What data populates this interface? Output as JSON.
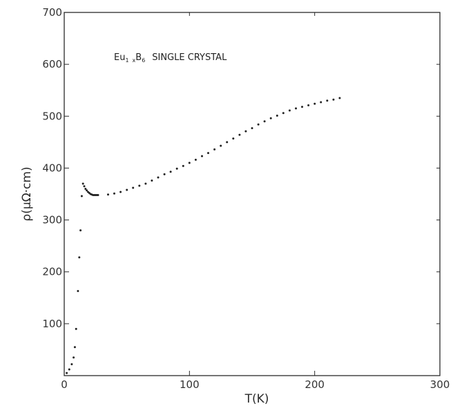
{
  "chart_data": {
    "type": "scatter",
    "title": "",
    "annotation": {
      "prefix": "Eu",
      "sub1": "1",
      "x": "x",
      "middle": "B",
      "sub2": "6",
      "suffix": "SINGLE CRYSTAL"
    },
    "xlabel": "T(K)",
    "ylabel": "ρ(μΩ·cm)",
    "xlim": [
      0,
      300
    ],
    "ylim": [
      0,
      700
    ],
    "xticks": [
      0,
      100,
      200,
      300
    ],
    "xtick_labels": [
      "0",
      "100",
      "200",
      "300"
    ],
    "yticks": [
      100,
      200,
      300,
      400,
      500,
      600,
      700
    ],
    "ytick_labels": [
      "100",
      "200",
      "300",
      "400",
      "500",
      "600",
      "700"
    ],
    "grid": false,
    "legend": "none",
    "color": "#222222",
    "series": [
      {
        "points": [
          [
            2,
            5
          ],
          [
            4,
            12
          ],
          [
            6,
            22
          ],
          [
            7.5,
            35
          ],
          [
            8.5,
            55
          ],
          [
            9.5,
            90
          ],
          [
            11,
            163
          ],
          [
            12,
            228
          ],
          [
            13,
            280
          ],
          [
            14,
            346
          ],
          [
            15,
            370
          ],
          [
            16,
            365
          ],
          [
            17,
            360
          ],
          [
            18,
            357
          ],
          [
            19,
            354
          ],
          [
            20,
            352
          ],
          [
            21,
            350
          ],
          [
            22,
            349
          ],
          [
            23,
            348
          ],
          [
            24,
            348
          ],
          [
            25,
            348
          ],
          [
            26,
            348
          ],
          [
            27,
            348
          ],
          [
            35,
            349
          ],
          [
            40,
            351
          ],
          [
            45,
            354
          ],
          [
            50,
            358
          ],
          [
            55,
            362
          ],
          [
            60,
            366
          ],
          [
            65,
            370
          ],
          [
            70,
            376
          ],
          [
            75,
            382
          ],
          [
            80,
            388
          ],
          [
            85,
            393
          ],
          [
            90,
            399
          ],
          [
            95,
            404
          ],
          [
            100,
            410
          ],
          [
            105,
            416
          ],
          [
            110,
            423
          ],
          [
            115,
            429
          ],
          [
            120,
            436
          ],
          [
            125,
            443
          ],
          [
            130,
            450
          ],
          [
            135,
            457
          ],
          [
            140,
            464
          ],
          [
            145,
            471
          ],
          [
            150,
            477
          ],
          [
            155,
            484
          ],
          [
            160,
            490
          ],
          [
            165,
            496
          ],
          [
            170,
            501
          ],
          [
            175,
            506
          ],
          [
            180,
            511
          ],
          [
            185,
            515
          ],
          [
            190,
            518
          ],
          [
            195,
            521
          ],
          [
            200,
            524
          ],
          [
            205,
            527
          ],
          [
            210,
            530
          ],
          [
            215,
            532
          ],
          [
            220,
            535
          ]
        ]
      }
    ]
  }
}
